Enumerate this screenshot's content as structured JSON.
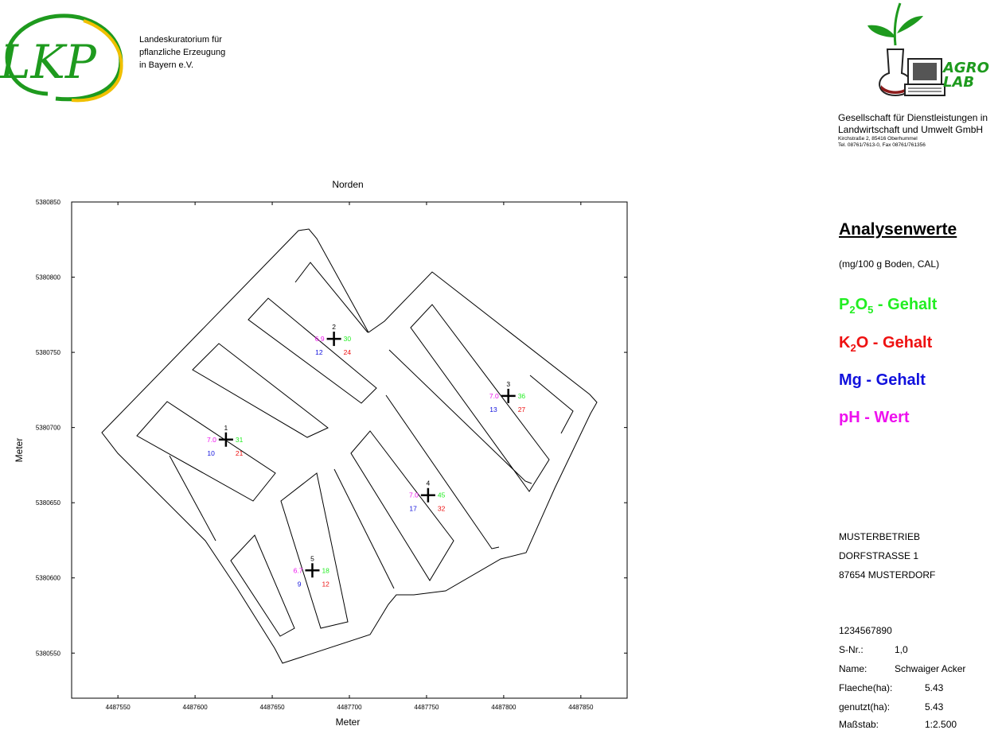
{
  "lkp": {
    "logo_text": "LKP",
    "lines": [
      "Landeskuratorium für",
      "pflanzliche Erzeugung",
      "in Bayern e.V."
    ]
  },
  "agrolab": {
    "logo_text_1": "AGRO",
    "logo_text_2": "LAB",
    "line1": "Gesellschaft für Dienstleistungen in",
    "line2": "Landwirtschaft und Umwelt GmbH",
    "address": "Kirchstraße 2, 85416 Oberhummel",
    "phone": "Tel. 08761/7613-0, Fax 08761/761356"
  },
  "legend": {
    "title": "Analysenwerte",
    "unit": "(mg/100 g Boden, CAL)",
    "p_prefix": "P",
    "p_sub1": "2",
    "p_mid": "O",
    "p_sub2": "5",
    "p_suffix": " - Gehalt",
    "k_prefix": "K",
    "k_sub": "2",
    "k_suffix": "O - Gehalt",
    "mg": "Mg - Gehalt",
    "ph": "pH - Wert",
    "colors": {
      "p2o5": "#22ee22",
      "k2o": "#ee1111",
      "mg": "#1111dd",
      "ph": "#ee11ee"
    }
  },
  "farm": {
    "name": "MUSTERBETRIEB",
    "street": "DORFSTRASSE 1",
    "city": "87654 MUSTERDORF"
  },
  "field_info": {
    "id": "1234567890",
    "snr_label": "S-Nr.:",
    "snr_value": "1,0",
    "name_label": "Name:",
    "name_value": "Schwaiger Acker",
    "area_label": "Flaeche(ha):",
    "area_value": "5.43",
    "used_label": "genutzt(ha):",
    "used_value": "5.43",
    "scale_label": "Maßstab:",
    "scale_value": "1:2.500"
  },
  "map": {
    "north_label": "Norden",
    "x_axis_label": "Meter",
    "y_axis_label": "Meter",
    "x_range": [
      4487520,
      4487880
    ],
    "y_range": [
      5380520,
      5380850
    ],
    "x_ticks": [
      4487550,
      4487600,
      4487650,
      4487700,
      4487750,
      4487800,
      4487850
    ],
    "y_ticks": [
      5380550,
      5380600,
      5380650,
      5380700,
      5380750,
      5380800,
      5380850
    ],
    "samples": [
      {
        "n": "1",
        "x": 4487620,
        "y": 5380692,
        "ph": "7.0",
        "p2o5": "31",
        "mg": "10",
        "k2o": "21"
      },
      {
        "n": "2",
        "x": 4487690,
        "y": 5380759,
        "ph": "6.9",
        "p2o5": "30",
        "mg": "12",
        "k2o": "24"
      },
      {
        "n": "3",
        "x": 4487803,
        "y": 5380721,
        "ph": "7.0",
        "p2o5": "36",
        "mg": "13",
        "k2o": "27"
      },
      {
        "n": "4",
        "x": 4487751,
        "y": 5380655,
        "ph": "7.0",
        "p2o5": "45",
        "mg": "17",
        "k2o": "32"
      },
      {
        "n": "5",
        "x": 4487676,
        "y": 5380605,
        "ph": "6.7",
        "p2o5": "18",
        "mg": "9",
        "k2o": "12"
      }
    ]
  }
}
